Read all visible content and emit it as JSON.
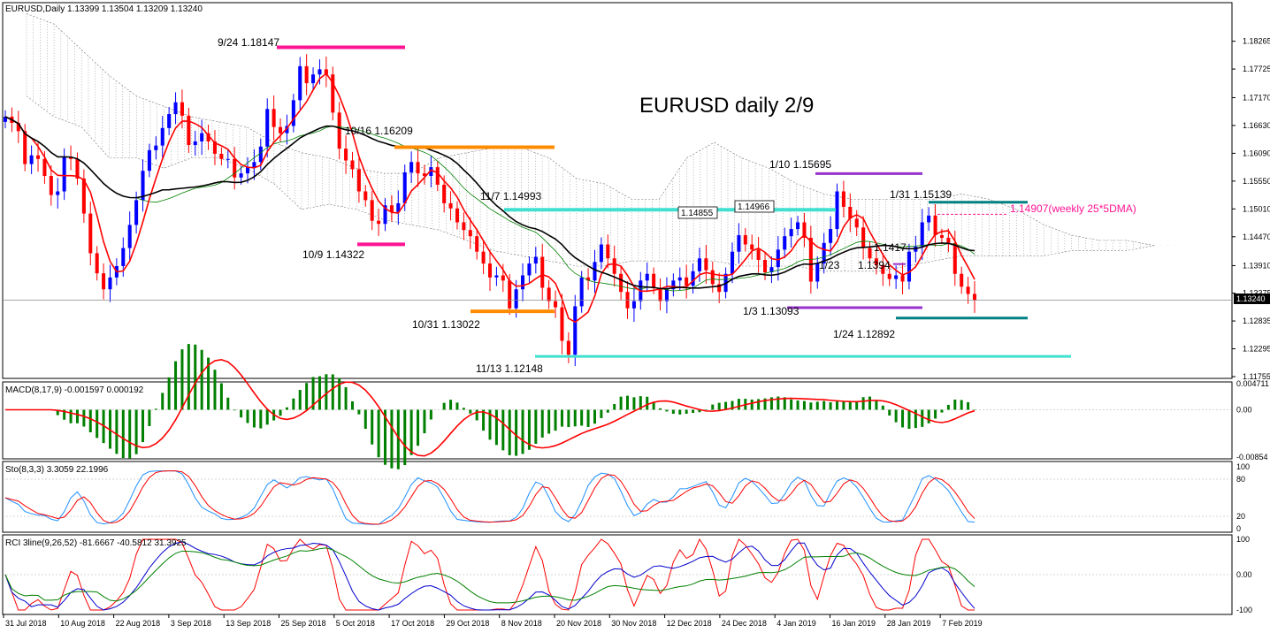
{
  "chart_data": {
    "type": "candlestick",
    "title": "EURUSD daily 2/9",
    "header": "EURUSD,Daily  1.13399 1.13504 1.13209 1.13240",
    "current_price": "1.13240",
    "price_axis": {
      "min": 1.11755,
      "max": 1.18825,
      "ticks": [
        "1.18265",
        "1.17725",
        "1.17170",
        "1.16630",
        "1.16090",
        "1.15550",
        "1.15010",
        "1.14470",
        "1.13910",
        "1.13375",
        "1.12835",
        "1.12295",
        "1.11755"
      ]
    },
    "x_labels": [
      "31 Jul 2018",
      "10 Aug 2018",
      "22 Aug 2018",
      "3 Sep 2018",
      "13 Sep 2018",
      "25 Sep 2018",
      "5 Oct 2018",
      "17 Oct 2018",
      "29 Oct 2018",
      "8 Nov 2018",
      "20 Nov 2018",
      "30 Nov 2018",
      "12 Dec 2018",
      "24 Dec 2018",
      "4 Jan 2019",
      "16 Jan 2019",
      "28 Jan 2019",
      "7 Feb 2019"
    ],
    "closes": [
      1.168,
      1.1668,
      1.1652,
      1.1588,
      1.1605,
      1.1598,
      1.1565,
      1.1528,
      1.1535,
      1.1602,
      1.1598,
      1.156,
      1.1492,
      1.1415,
      1.1376,
      1.1345,
      1.1368,
      1.139,
      1.1425,
      1.147,
      1.1518,
      1.1575,
      1.1615,
      1.1624,
      1.1658,
      1.1685,
      1.1708,
      1.1682,
      1.1625,
      1.1632,
      1.1648,
      1.1632,
      1.1608,
      1.1598,
      1.1598,
      1.1562,
      1.157,
      1.1582,
      1.1592,
      1.1622,
      1.1695,
      1.166,
      1.1648,
      1.1662,
      1.1712,
      1.1778,
      1.1745,
      1.1762,
      1.1772,
      1.1762,
      1.1688,
      1.1618,
      1.1595,
      1.1578,
      1.1535,
      1.1518,
      1.1478,
      1.1472,
      1.1508,
      1.1495,
      1.1512,
      1.1572,
      1.1592,
      1.157,
      1.1565,
      1.1582,
      1.1548,
      1.1512,
      1.1502,
      1.1475,
      1.146,
      1.1448,
      1.1418,
      1.1395,
      1.1368,
      1.1372,
      1.1362,
      1.1308,
      1.1345,
      1.1372,
      1.1395,
      1.1408,
      1.1348,
      1.1322,
      1.131,
      1.1245,
      1.1218,
      1.1312,
      1.1368,
      1.1362,
      1.1398,
      1.1432,
      1.1405,
      1.1375,
      1.134,
      1.1308,
      1.1322,
      1.1362,
      1.1375,
      1.1348,
      1.1322,
      1.1345,
      1.1362,
      1.1368,
      1.1352,
      1.138,
      1.1405,
      1.1382,
      1.1355,
      1.134,
      1.1375,
      1.1418,
      1.145,
      1.1432,
      1.1422,
      1.1402,
      1.1378,
      1.1388,
      1.1422,
      1.1448,
      1.1462,
      1.1475,
      1.1445,
      1.136,
      1.1395,
      1.1435,
      1.1462,
      1.1535,
      1.1505,
      1.1482,
      1.1465,
      1.1425,
      1.1405,
      1.1392,
      1.1375,
      1.1365,
      1.1372,
      1.136,
      1.1418,
      1.1428,
      1.1475,
      1.1488,
      1.145,
      1.1445,
      1.1435,
      1.1375,
      1.135,
      1.1336,
      1.1324
    ],
    "annotations": [
      "9/24 1.18147",
      "10/16 1.16209",
      "10/9 1.14322",
      "11/7 1.14993",
      "10/31 1.13022",
      "11/13 1.12148",
      "1/10 1.15695",
      "1/31 1.15139",
      "1/3 1.13093",
      "1/24 1.12892",
      "1/23",
      "1.1394",
      "1.1417",
      "1.14855",
      "1.14966",
      "1.14907(weekly 25*5DMA)"
    ],
    "colors": {
      "up": "#0000ff",
      "down": "#ff0000",
      "ma_black": "#000000",
      "ma_red": "#ff0000",
      "ma_green": "#008000",
      "macd_hist": "#008000",
      "magenta": "#ff1493",
      "orange": "#ff8c00",
      "cyan": "#40e0d0",
      "purple": "#9932cc",
      "teal": "#008080",
      "stoch_blue": "#1e90ff"
    },
    "panels": [
      {
        "name": "MACD(8,17,9) -0.001597 0.000192",
        "ticks": [
          "0.004711",
          "0.00",
          "-0.00854"
        ]
      },
      {
        "name": "Sto(8,3,3) 3.3059 22.1996",
        "ticks": [
          "100",
          "80",
          "20",
          "0"
        ]
      },
      {
        "name": "RCI 3line(9,26,52) -81.6667 -40.5812 31.3925",
        "ticks": [
          "100",
          "0.00",
          "-100"
        ]
      }
    ]
  }
}
